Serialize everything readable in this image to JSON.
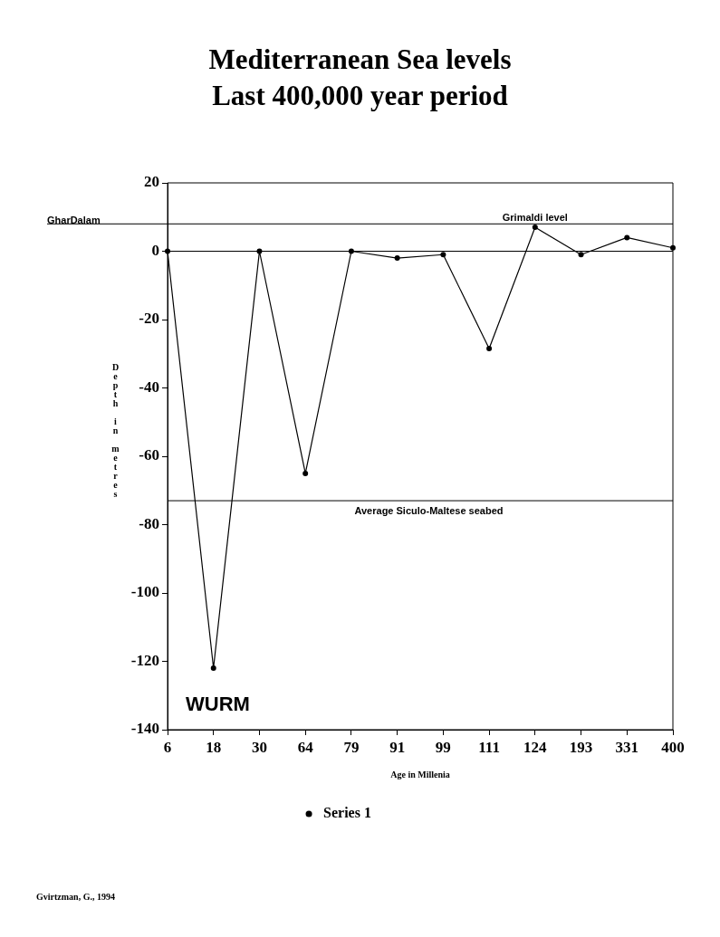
{
  "chart_data": {
    "type": "line",
    "title": "Mediterranean Sea levels",
    "subtitle": "Last 400,000 year period",
    "xlabel": "Age in Millenia",
    "ylabel": "Depth in metres",
    "categories": [
      "6",
      "18",
      "30",
      "64",
      "79",
      "91",
      "99",
      "111",
      "124",
      "193",
      "331",
      "400"
    ],
    "series": [
      {
        "name": "Series 1",
        "color": "#000000",
        "values": [
          0,
          -122,
          0,
          -65,
          0,
          -2,
          -1,
          -28.5,
          7,
          -1,
          4,
          1
        ]
      }
    ],
    "ylim": [
      -140,
      20
    ],
    "yticks": [
      -140,
      -120,
      -100,
      -80,
      -60,
      -40,
      -20,
      0,
      20
    ],
    "ref_lines": [
      {
        "axis": "y",
        "value": 8,
        "label": "GharDalam"
      },
      {
        "axis": "y",
        "value": 0
      },
      {
        "axis": "y",
        "value": -73,
        "label": "Average Siculo-Maltese seabed"
      }
    ],
    "annotations": [
      {
        "text": "Grimaldi level",
        "x": "124",
        "y": 8
      },
      "WURM",
      "Gvirtzman, G., 1994"
    ],
    "grid": false,
    "legend": "bottom",
    "marker": "circle",
    "line_style": "solid"
  }
}
